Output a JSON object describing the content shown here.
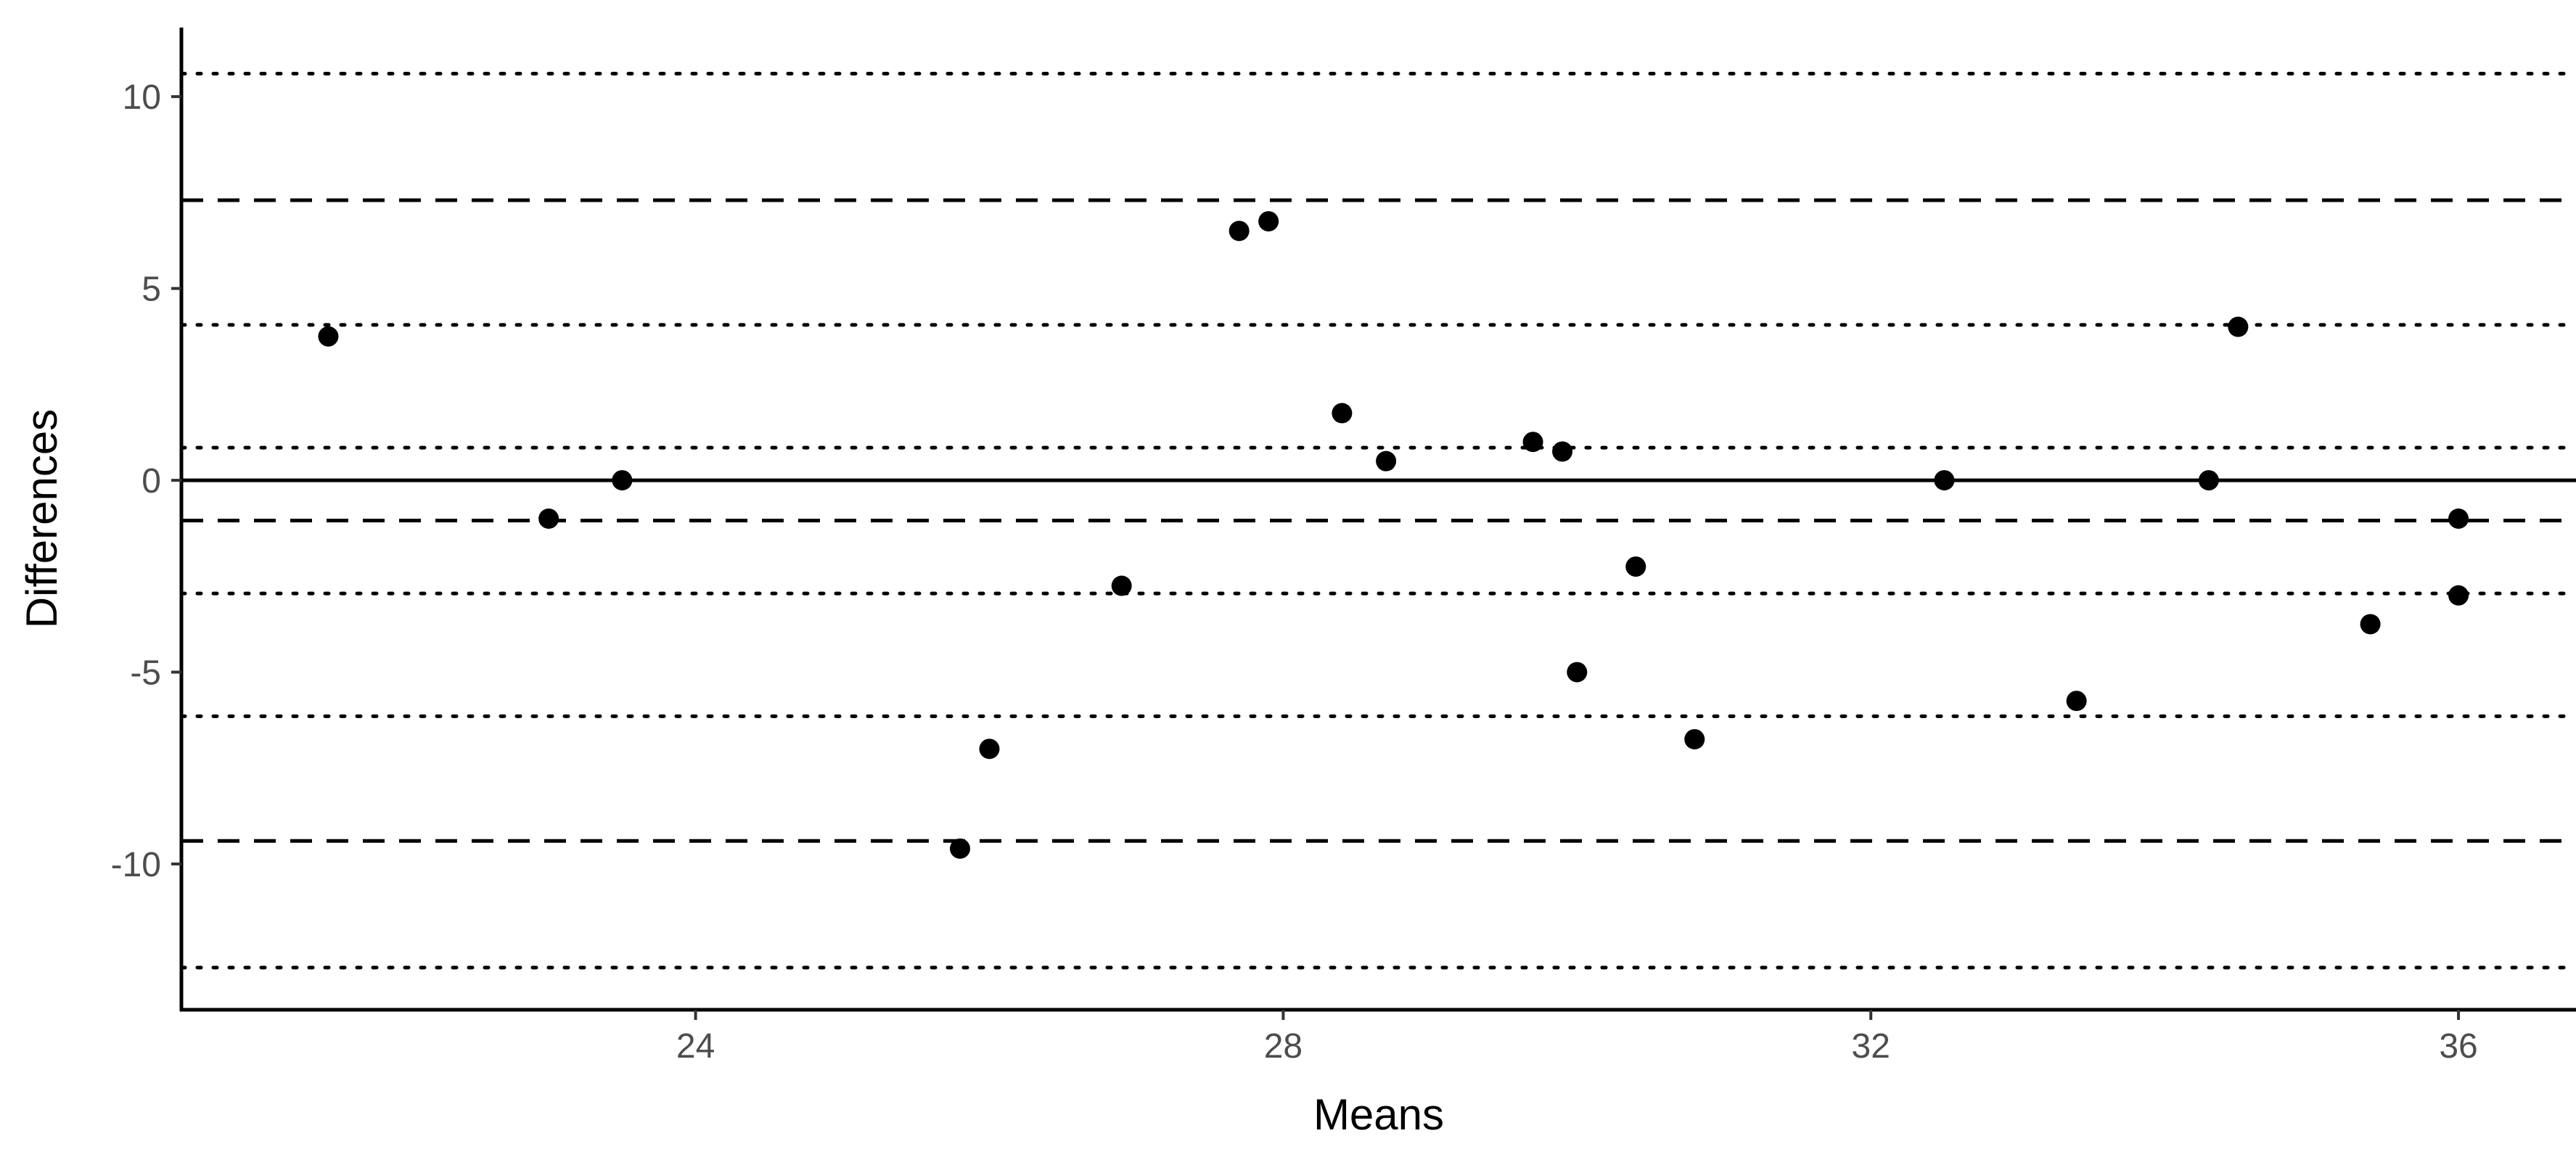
{
  "chart_data": {
    "type": "scatter",
    "title": "",
    "xlabel": "Means",
    "ylabel": "Differences",
    "xlim": [
      20.5,
      36.8
    ],
    "ylim": [
      -13.8,
      11.8
    ],
    "x_ticks": [
      24,
      28,
      32,
      36
    ],
    "x_tick_labels": [
      "24",
      "28",
      "32",
      "36"
    ],
    "y_ticks": [
      -10,
      -5,
      0,
      5,
      10
    ],
    "y_tick_labels": [
      "-10",
      "-5",
      "0",
      "5",
      "10"
    ],
    "grid": false,
    "legend": "none",
    "point_color": "#000000",
    "reference_lines": [
      {
        "value": 0,
        "style": "solid"
      },
      {
        "value": -1.05,
        "style": "dashed"
      },
      {
        "value": 7.3,
        "style": "dashed"
      },
      {
        "value": -9.4,
        "style": "dashed"
      },
      {
        "value": 10.6,
        "style": "dotted"
      },
      {
        "value": 4.05,
        "style": "dotted"
      },
      {
        "value": 0.85,
        "style": "dotted"
      },
      {
        "value": -2.95,
        "style": "dotted"
      },
      {
        "value": -6.15,
        "style": "dotted"
      },
      {
        "value": -12.7,
        "style": "dotted"
      }
    ],
    "points": [
      {
        "x": 21.5,
        "y": 3.75
      },
      {
        "x": 23.0,
        "y": -1.0
      },
      {
        "x": 23.5,
        "y": 0.0
      },
      {
        "x": 25.8,
        "y": -9.6
      },
      {
        "x": 26.0,
        "y": -7.0
      },
      {
        "x": 26.9,
        "y": -2.75
      },
      {
        "x": 27.7,
        "y": 6.5
      },
      {
        "x": 27.9,
        "y": 6.75
      },
      {
        "x": 28.4,
        "y": 1.75
      },
      {
        "x": 28.7,
        "y": 0.5
      },
      {
        "x": 29.7,
        "y": 1.0
      },
      {
        "x": 29.9,
        "y": 0.75
      },
      {
        "x": 30.0,
        "y": -5.0
      },
      {
        "x": 30.4,
        "y": -2.25
      },
      {
        "x": 30.8,
        "y": -6.75
      },
      {
        "x": 32.5,
        "y": 0.0
      },
      {
        "x": 33.4,
        "y": -5.75
      },
      {
        "x": 34.3,
        "y": 0.0
      },
      {
        "x": 34.5,
        "y": 4.0
      },
      {
        "x": 35.4,
        "y": -3.75
      },
      {
        "x": 36.0,
        "y": -1.0
      },
      {
        "x": 36.0,
        "y": -3.0
      }
    ]
  }
}
